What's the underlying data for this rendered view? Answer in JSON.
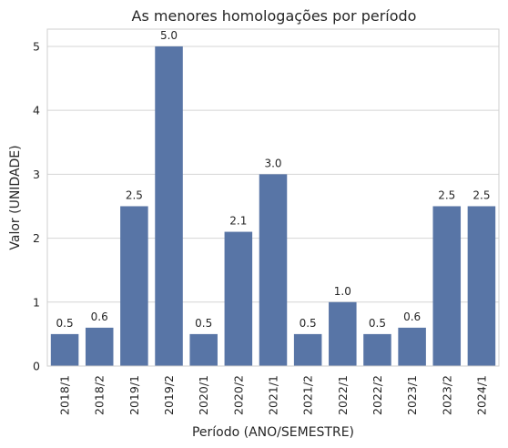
{
  "chart_data": {
    "type": "bar",
    "title": "As menores homologações por período",
    "xlabel": "Período (ANO/SEMESTRE)",
    "ylabel": "Valor (UNIDADE)",
    "categories": [
      "2018/1",
      "2018/2",
      "2019/1",
      "2019/2",
      "2020/1",
      "2020/2",
      "2021/1",
      "2021/2",
      "2022/1",
      "2022/2",
      "2023/1",
      "2023/2",
      "2024/1"
    ],
    "values": [
      0.5,
      0.6,
      2.5,
      5.0,
      0.5,
      2.1,
      3.0,
      0.5,
      1.0,
      0.5,
      0.6,
      2.5,
      2.5
    ],
    "data_labels": [
      "0.5",
      "0.6",
      "2.5",
      "5.0",
      "0.5",
      "2.1",
      "3.0",
      "0.5",
      "1.0",
      "0.5",
      "0.6",
      "2.5",
      "2.5"
    ],
    "yticks": [
      "0",
      "1",
      "2",
      "3",
      "4",
      "5"
    ],
    "ylim": [
      0,
      5.27
    ],
    "grid": "horizontal",
    "bar_color": "#5875a6"
  }
}
